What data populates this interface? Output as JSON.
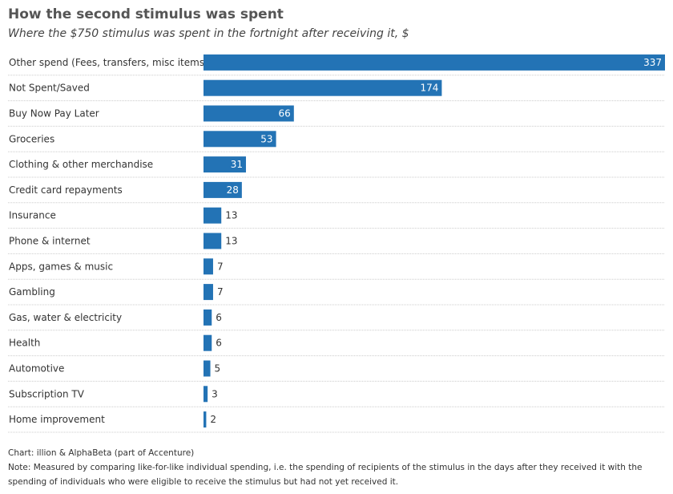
{
  "title": "How the second stimulus was spent",
  "subtitle": "Where the $750 stimulus was spent in the fortnight after receiving it, $",
  "source": "Chart: illion & AlphaBeta (part of Accenture)",
  "note": "Note: Measured by comparing like-for-like individual spending, i.e. the spending of recipients of the stimulus in the days after they received it with the spending of individuals who were eligible to receive the stimulus but had not yet received it.",
  "colors": {
    "bar": "#2373b5",
    "gridline": "#cccccc",
    "label_inside": "#ffffff",
    "label_outside": "#333333"
  },
  "chart_data": {
    "type": "bar",
    "orientation": "horizontal",
    "categories": [
      "Other spend (Fees, transfers, misc items)",
      "Not Spent/Saved",
      "Buy Now Pay Later",
      "Groceries",
      "Clothing & other merchandise",
      "Credit card repayments",
      "Insurance",
      "Phone & internet",
      "Apps, games & music",
      "Gambling",
      "Gas, water & electricity",
      "Health",
      "Automotive",
      "Subscription TV",
      "Home improvement"
    ],
    "values": [
      337,
      174,
      66,
      53,
      31,
      28,
      13,
      13,
      7,
      7,
      6,
      6,
      5,
      3,
      2
    ],
    "xlim": [
      0,
      337
    ],
    "grid": false,
    "data_labels": true
  }
}
